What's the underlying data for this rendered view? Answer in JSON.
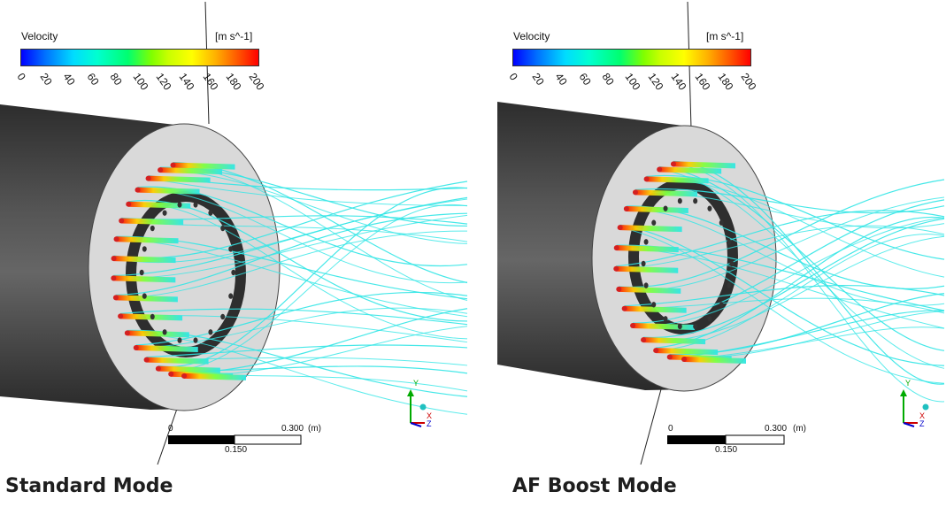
{
  "panels": [
    {
      "colorbar": {
        "title": "Velocity",
        "unit": "[m s^-1]",
        "ticks": [
          "0",
          "20",
          "40",
          "60",
          "80",
          "100",
          "120",
          "140",
          "160",
          "180",
          "200"
        ]
      },
      "scale": {
        "zero": "0",
        "max": "0.300",
        "unit": "(m)",
        "mid": "0.150"
      },
      "axes": {
        "y": "Y",
        "x": "X",
        "z": "Z"
      },
      "caption": "Standard Mode"
    },
    {
      "colorbar": {
        "title": "Velocity",
        "unit": "[m s^-1]",
        "ticks": [
          "0",
          "20",
          "40",
          "60",
          "80",
          "100",
          "120",
          "140",
          "160",
          "180",
          "200"
        ]
      },
      "scale": {
        "zero": "0",
        "max": "0.300",
        "unit": "(m)",
        "mid": "0.150"
      },
      "axes": {
        "y": "Y",
        "x": "X",
        "z": "Z"
      },
      "caption": "AF Boost Mode"
    }
  ],
  "colors": {
    "cylinder_dark": "#3a3a3a",
    "disk_face": "#d8d8d8",
    "ring": "#2a2a2a",
    "streamline": "#32e6e6",
    "nozzle": "#d42020"
  }
}
